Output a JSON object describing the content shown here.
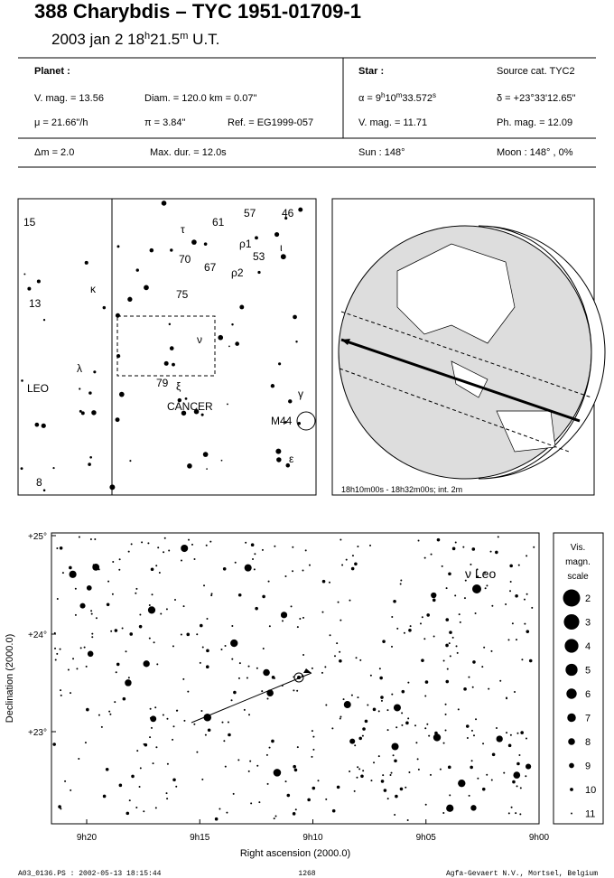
{
  "header": {
    "title": "388 Charybdis  –  TYC 1951-01709-1",
    "date": [
      "2003 jan  2  18",
      "h",
      "21.5",
      "m",
      " U.T."
    ]
  },
  "info": {
    "planet_label": "Planet :",
    "star_label": "Star :",
    "source": "Source cat.  TYC2",
    "planet_vmag": "V. mag. = 13.56",
    "diam": "Diam. = 120.0 km = 0.07\"",
    "alpha": [
      "α = 9",
      "h",
      "10",
      "m",
      "33.572",
      "s"
    ],
    "delta": "δ = +23°33'12.65\"",
    "mu": "μ =  21.66\"/h",
    "pi": "π =  3.84\"",
    "ref": "Ref. = EG1999-057",
    "star_vmag": "V. mag. = 11.71",
    "phmag": "Ph. mag. = 12.09",
    "dm": "Δm = 2.0",
    "maxdur": "Max. dur. = 12.0s",
    "sun": "Sun : 148°",
    "moon": "Moon : 148° ,  0%"
  },
  "finder_chart": {
    "labels": [
      "15",
      "13",
      "κ",
      "λ",
      "LEO",
      "8",
      "τ",
      "61",
      "57",
      "46",
      "ρ1",
      "53",
      "ι",
      "70",
      "67",
      "ρ2",
      "75",
      "ν",
      "79",
      "ξ",
      "CANCER",
      "γ",
      "M44",
      "ε"
    ]
  },
  "globe": {
    "caption": "18h10m00s - 18h32m00s; int.  2m"
  },
  "star_chart": {
    "star_label": "ν Leo",
    "yticks": [
      "+25°",
      "+24°",
      "+23°"
    ],
    "xticks": [
      "9h20",
      "9h15",
      "9h10",
      "9h05",
      "9h00"
    ],
    "ylabel": "Declination (2000.0)",
    "xlabel": "Right ascension (2000.0)",
    "legend_title": [
      "Vis.",
      "magn.",
      "scale"
    ],
    "magnitudes": [
      2,
      3,
      4,
      5,
      6,
      7,
      8,
      9,
      10,
      11
    ]
  },
  "footer": {
    "file": "A03_0136.PS : 2002-05-13 18:15:44",
    "page": "1268",
    "credit": "Agfa-Gevaert N.V., Mortsel, Belgium"
  }
}
